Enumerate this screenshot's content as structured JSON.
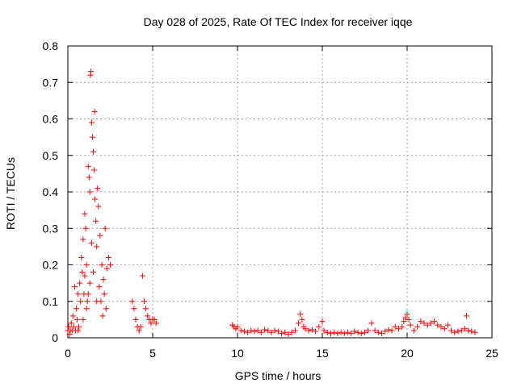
{
  "chart_data": {
    "type": "scatter",
    "title": "Day 028 of 2025, Rate Of TEC Index for receiver iqqe",
    "xlabel": "GPS time / hours",
    "ylabel": "ROTI / TECUs",
    "xlim": [
      0,
      25
    ],
    "ylim": [
      0,
      0.8
    ],
    "x_ticks": [
      0,
      5,
      10,
      15,
      20,
      25
    ],
    "y_ticks": [
      0,
      0.1,
      0.2,
      0.3,
      0.4,
      0.5,
      0.6,
      0.7,
      0.8
    ],
    "x_tick_labels": [
      "0",
      "5",
      "10",
      "15",
      "20",
      "25"
    ],
    "y_tick_labels": [
      "0",
      "0.1",
      "0.2",
      "0.3",
      "0.4",
      "0.5",
      "0.6",
      "0.7",
      "0.8"
    ],
    "grid": true,
    "marker": "+",
    "color": "#ff0000",
    "series": [
      {
        "points": [
          [
            0.0,
            0.02
          ],
          [
            0.05,
            0.03
          ],
          [
            0.1,
            0.01
          ],
          [
            0.15,
            0.02
          ],
          [
            0.2,
            0.04
          ],
          [
            0.25,
            0.02
          ],
          [
            0.3,
            0.06
          ],
          [
            0.35,
            0.03
          ],
          [
            0.4,
            0.14
          ],
          [
            0.45,
            0.02
          ],
          [
            0.5,
            0.08
          ],
          [
            0.55,
            0.05
          ],
          [
            0.6,
            0.12
          ],
          [
            0.65,
            0.03
          ],
          [
            0.7,
            0.15
          ],
          [
            0.75,
            0.1
          ],
          [
            0.8,
            0.22
          ],
          [
            0.85,
            0.18
          ],
          [
            0.9,
            0.27
          ],
          [
            0.95,
            0.12
          ],
          [
            1.0,
            0.34
          ],
          [
            1.05,
            0.3
          ],
          [
            1.1,
            0.2
          ],
          [
            1.15,
            0.1
          ],
          [
            1.2,
            0.47
          ],
          [
            1.25,
            0.44
          ],
          [
            1.3,
            0.4
          ],
          [
            1.33,
            0.72
          ],
          [
            1.36,
            0.73
          ],
          [
            1.4,
            0.59
          ],
          [
            1.45,
            0.55
          ],
          [
            1.5,
            0.51
          ],
          [
            1.55,
            0.46
          ],
          [
            1.58,
            0.62
          ],
          [
            1.6,
            0.38
          ],
          [
            1.65,
            0.32
          ],
          [
            1.7,
            0.25
          ],
          [
            1.75,
            0.41
          ],
          [
            1.8,
            0.36
          ],
          [
            1.85,
            0.14
          ],
          [
            1.9,
            0.28
          ],
          [
            1.95,
            0.1
          ],
          [
            2.0,
            0.2
          ],
          [
            2.05,
            0.06
          ],
          [
            2.1,
            0.16
          ],
          [
            2.15,
            0.12
          ],
          [
            2.2,
            0.3
          ],
          [
            2.25,
            0.08
          ],
          [
            2.3,
            0.19
          ],
          [
            2.4,
            0.22
          ],
          [
            2.5,
            0.2
          ],
          [
            1.1,
            0.08
          ],
          [
            1.2,
            0.12
          ],
          [
            1.3,
            0.15
          ],
          [
            1.5,
            0.18
          ],
          [
            1.7,
            0.1
          ],
          [
            0.6,
            0.02
          ],
          [
            0.9,
            0.05
          ],
          [
            1.0,
            0.17
          ],
          [
            1.4,
            0.26
          ],
          [
            3.8,
            0.1
          ],
          [
            3.9,
            0.08
          ],
          [
            4.0,
            0.05
          ],
          [
            4.1,
            0.03
          ],
          [
            4.2,
            0.02
          ],
          [
            4.3,
            0.03
          ],
          [
            4.4,
            0.17
          ],
          [
            4.5,
            0.1
          ],
          [
            4.6,
            0.08
          ],
          [
            4.7,
            0.06
          ],
          [
            4.8,
            0.05
          ],
          [
            4.9,
            0.04
          ],
          [
            5.0,
            0.05
          ],
          [
            5.1,
            0.05
          ],
          [
            5.2,
            0.04
          ],
          [
            9.7,
            0.035
          ],
          [
            9.8,
            0.03
          ],
          [
            9.9,
            0.025
          ],
          [
            10.0,
            0.03
          ],
          [
            10.2,
            0.02
          ],
          [
            10.4,
            0.018
          ],
          [
            10.6,
            0.015
          ],
          [
            10.8,
            0.02
          ],
          [
            11.0,
            0.018
          ],
          [
            11.2,
            0.02
          ],
          [
            11.4,
            0.015
          ],
          [
            11.6,
            0.022
          ],
          [
            11.8,
            0.02
          ],
          [
            12.0,
            0.015
          ],
          [
            12.2,
            0.02
          ],
          [
            12.4,
            0.018
          ],
          [
            12.6,
            0.012
          ],
          [
            12.8,
            0.015
          ],
          [
            13.0,
            0.01
          ],
          [
            13.2,
            0.015
          ],
          [
            13.4,
            0.02
          ],
          [
            13.6,
            0.04
          ],
          [
            13.7,
            0.065
          ],
          [
            13.8,
            0.05
          ],
          [
            13.9,
            0.03
          ],
          [
            14.0,
            0.025
          ],
          [
            14.2,
            0.02
          ],
          [
            14.4,
            0.022
          ],
          [
            14.6,
            0.018
          ],
          [
            14.8,
            0.03
          ],
          [
            15.0,
            0.045
          ],
          [
            15.1,
            0.02
          ],
          [
            15.3,
            0.015
          ],
          [
            15.5,
            0.012
          ],
          [
            15.7,
            0.015
          ],
          [
            15.9,
            0.012
          ],
          [
            16.1,
            0.015
          ],
          [
            16.3,
            0.012
          ],
          [
            16.5,
            0.015
          ],
          [
            16.7,
            0.012
          ],
          [
            16.9,
            0.018
          ],
          [
            17.1,
            0.015
          ],
          [
            17.3,
            0.012
          ],
          [
            17.5,
            0.015
          ],
          [
            17.7,
            0.02
          ],
          [
            17.9,
            0.04
          ],
          [
            18.1,
            0.02
          ],
          [
            18.3,
            0.015
          ],
          [
            18.5,
            0.012
          ],
          [
            18.7,
            0.018
          ],
          [
            18.9,
            0.022
          ],
          [
            19.1,
            0.02
          ],
          [
            19.3,
            0.03
          ],
          [
            19.5,
            0.025
          ],
          [
            19.7,
            0.03
          ],
          [
            19.8,
            0.045
          ],
          [
            19.9,
            0.055
          ],
          [
            20.0,
            0.065
          ],
          [
            20.1,
            0.05
          ],
          [
            20.2,
            0.035
          ],
          [
            20.4,
            0.02
          ],
          [
            20.6,
            0.03
          ],
          [
            20.8,
            0.045
          ],
          [
            21.0,
            0.04
          ],
          [
            21.2,
            0.035
          ],
          [
            21.4,
            0.04
          ],
          [
            21.6,
            0.045
          ],
          [
            21.8,
            0.035
          ],
          [
            22.0,
            0.03
          ],
          [
            22.2,
            0.025
          ],
          [
            22.4,
            0.035
          ],
          [
            22.6,
            0.02
          ],
          [
            22.8,
            0.015
          ],
          [
            23.0,
            0.018
          ],
          [
            23.2,
            0.02
          ],
          [
            23.4,
            0.025
          ],
          [
            23.5,
            0.06
          ],
          [
            23.6,
            0.02
          ],
          [
            23.8,
            0.018
          ],
          [
            24.0,
            0.015
          ]
        ]
      }
    ]
  }
}
